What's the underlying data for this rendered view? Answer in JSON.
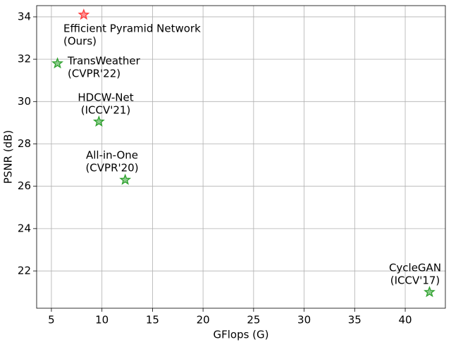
{
  "chart_data": {
    "type": "scatter",
    "xlabel": "GFlops (G)",
    "ylabel": "PSNR (dB)",
    "xlim": [
      3.54,
      43.97
    ],
    "ylim": [
      20.24,
      34.53
    ],
    "xticks": [
      5,
      10,
      15,
      20,
      25,
      30,
      35,
      40
    ],
    "yticks": [
      22,
      24,
      26,
      28,
      30,
      32,
      34
    ],
    "grid": true,
    "points": [
      {
        "label": [
          "Efficient Pyramid Network",
          "(Ours)"
        ],
        "x": 8.2,
        "y": 34.1,
        "color": "#ff3b3b"
      },
      {
        "label": [
          "TransWeather",
          "(CVPR'22)"
        ],
        "x": 5.6,
        "y": 31.8,
        "color": "#2ca02c"
      },
      {
        "label": [
          "HDCW-Net",
          "(ICCV'21)"
        ],
        "x": 9.7,
        "y": 29.05,
        "color": "#2ca02c"
      },
      {
        "label": [
          "All-in-One",
          "(CVPR'20)"
        ],
        "x": 12.3,
        "y": 26.3,
        "color": "#2ca02c"
      },
      {
        "label": [
          "CycleGAN",
          "(ICCV'17)"
        ],
        "x": 42.4,
        "y": 21.0,
        "color": "#2ca02c"
      }
    ]
  }
}
